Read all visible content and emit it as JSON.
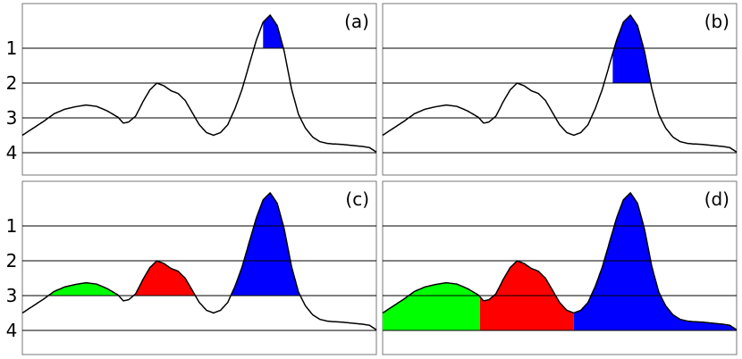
{
  "figure": {
    "y_ticks": [
      "1",
      "2",
      "3",
      "4"
    ],
    "y_range": [
      0,
      4.4
    ],
    "x_range": [
      0,
      100
    ]
  },
  "profile": {
    "x": [
      0,
      3,
      6,
      9,
      12,
      15,
      18,
      21,
      24,
      27,
      28.5,
      30,
      32,
      34,
      36,
      38,
      40,
      42,
      44,
      46,
      48,
      50,
      52,
      54,
      56,
      58,
      60,
      62,
      64,
      66,
      68,
      70,
      72,
      74,
      76,
      78,
      80,
      82,
      84,
      86,
      88,
      90,
      92,
      94,
      96,
      98,
      100
    ],
    "y": [
      3.5,
      3.3,
      3.1,
      2.88,
      2.75,
      2.68,
      2.63,
      2.67,
      2.8,
      2.98,
      3.15,
      3.12,
      2.95,
      2.55,
      2.2,
      2.0,
      2.08,
      2.22,
      2.3,
      2.5,
      2.85,
      3.2,
      3.42,
      3.5,
      3.42,
      3.2,
      2.75,
      2.2,
      1.5,
      0.8,
      0.25,
      0.05,
      0.35,
      1.1,
      2.15,
      2.9,
      3.3,
      3.55,
      3.68,
      3.73,
      3.75,
      3.76,
      3.78,
      3.8,
      3.82,
      3.85,
      3.98
    ]
  },
  "panels": [
    {
      "label": "(a)",
      "fills": [
        {
          "color": "#0000ff",
          "x_from": 68,
          "x_to": 77,
          "level": 1.0
        }
      ]
    },
    {
      "label": "(b)",
      "fills": [
        {
          "color": "#0000ff",
          "x_from": 65,
          "x_to": 80,
          "level": 2.0
        }
      ]
    },
    {
      "label": "(c)",
      "fills": [
        {
          "color": "#00ff00",
          "x_from": 6,
          "x_to": 28.5,
          "level": 3.0
        },
        {
          "color": "#ff0000",
          "x_from": 28.5,
          "x_to": 54,
          "level": 3.0
        },
        {
          "color": "#0000ff",
          "x_from": 54,
          "x_to": 100,
          "level": 3.0
        }
      ]
    },
    {
      "label": "(d)",
      "fills": [
        {
          "color": "#00ff00",
          "x_from": 0,
          "x_to": 27.5,
          "level": 4.0
        },
        {
          "color": "#ff0000",
          "x_from": 27.5,
          "x_to": 54,
          "level": 4.0
        },
        {
          "color": "#0000ff",
          "x_from": 54,
          "x_to": 100,
          "level": 4.0
        }
      ]
    }
  ]
}
